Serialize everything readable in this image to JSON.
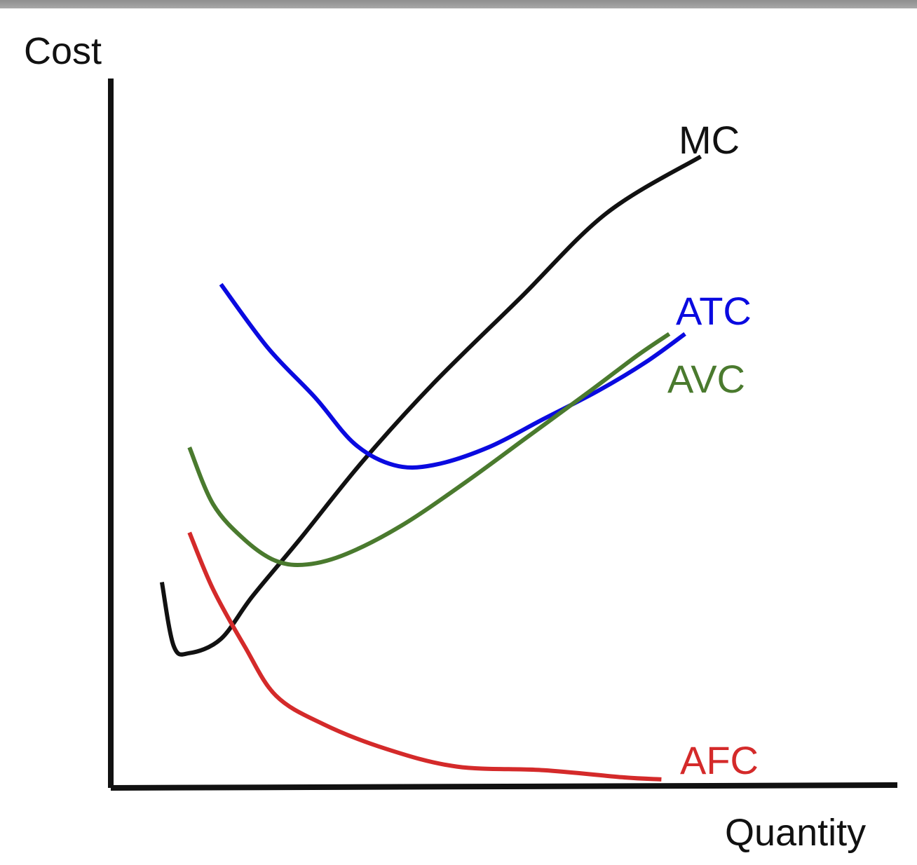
{
  "chart_data": {
    "type": "line",
    "xlabel": "Quantity",
    "ylabel": "Cost",
    "grid": false,
    "ticks": false,
    "xlim": [
      0,
      100
    ],
    "ylim": [
      0,
      100
    ],
    "series": [
      {
        "name": "MC",
        "color": "#111111",
        "points": [
          [
            6.5,
            29
          ],
          [
            8,
            20
          ],
          [
            10,
            19
          ],
          [
            14,
            21
          ],
          [
            18,
            27
          ],
          [
            24,
            35
          ],
          [
            32,
            46
          ],
          [
            41,
            57
          ],
          [
            52,
            69
          ],
          [
            63,
            81
          ],
          [
            75,
            89
          ]
        ]
      },
      {
        "name": "ATC",
        "color": "#0a0ae0",
        "points": [
          [
            14,
            71
          ],
          [
            20,
            62
          ],
          [
            26,
            55
          ],
          [
            31,
            48.5
          ],
          [
            36,
            45.5
          ],
          [
            41,
            45.5
          ],
          [
            48,
            48
          ],
          [
            55,
            52
          ],
          [
            62,
            56
          ],
          [
            68,
            60
          ],
          [
            73,
            64
          ]
        ]
      },
      {
        "name": "AVC",
        "color": "#4a7a2e",
        "points": [
          [
            10,
            48
          ],
          [
            13,
            40
          ],
          [
            17,
            35
          ],
          [
            21,
            32
          ],
          [
            25,
            31.5
          ],
          [
            30,
            33
          ],
          [
            37,
            37
          ],
          [
            45,
            43
          ],
          [
            53,
            49.5
          ],
          [
            61,
            56
          ],
          [
            67,
            61
          ],
          [
            71,
            64
          ]
        ]
      },
      {
        "name": "AFC",
        "color": "#d42a2a",
        "points": [
          [
            10,
            36
          ],
          [
            13,
            28
          ],
          [
            17,
            20
          ],
          [
            21,
            13
          ],
          [
            27,
            9
          ],
          [
            35,
            5.5
          ],
          [
            44,
            3
          ],
          [
            55,
            2.5
          ],
          [
            65,
            1.5
          ],
          [
            70,
            1.2
          ]
        ]
      }
    ]
  }
}
